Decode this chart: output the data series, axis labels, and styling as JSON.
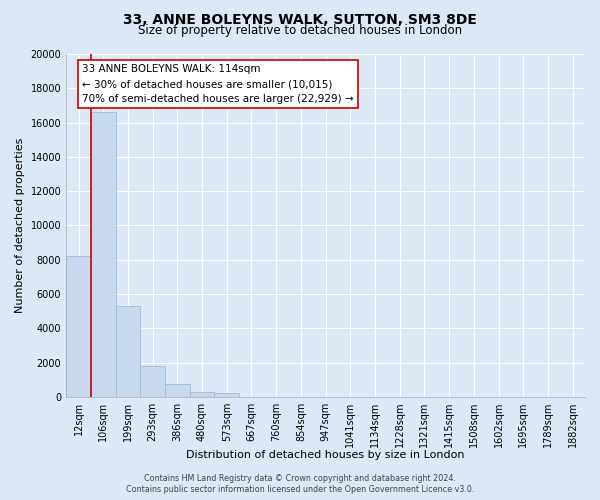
{
  "title": "33, ANNE BOLEYNS WALK, SUTTON, SM3 8DE",
  "subtitle": "Size of property relative to detached houses in London",
  "xlabel": "Distribution of detached houses by size in London",
  "ylabel": "Number of detached properties",
  "bar_labels": [
    "12sqm",
    "106sqm",
    "199sqm",
    "293sqm",
    "386sqm",
    "480sqm",
    "573sqm",
    "667sqm",
    "760sqm",
    "854sqm",
    "947sqm",
    "1041sqm",
    "1134sqm",
    "1228sqm",
    "1321sqm",
    "1415sqm",
    "1508sqm",
    "1602sqm",
    "1695sqm",
    "1789sqm",
    "1882sqm"
  ],
  "bar_values": [
    8200,
    16600,
    5300,
    1800,
    750,
    280,
    200,
    0,
    0,
    0,
    0,
    0,
    0,
    0,
    0,
    0,
    0,
    0,
    0,
    0,
    0
  ],
  "bar_color": "#c8d9ee",
  "bar_edge_color": "#a0b8d8",
  "ylim": [
    0,
    20000
  ],
  "yticks": [
    0,
    2000,
    4000,
    6000,
    8000,
    10000,
    12000,
    14000,
    16000,
    18000,
    20000
  ],
  "property_line_color": "#cc0000",
  "annotation_title": "33 ANNE BOLEYNS WALK: 114sqm",
  "annotation_line1": "← 30% of detached houses are smaller (10,015)",
  "annotation_line2": "70% of semi-detached houses are larger (22,929) →",
  "annotation_box_color": "#ffffff",
  "annotation_box_edge": "#cc0000",
  "footer_line1": "Contains HM Land Registry data © Crown copyright and database right 2024.",
  "footer_line2": "Contains public sector information licensed under the Open Government Licence v3.0.",
  "bg_color": "#dce8f5",
  "plot_bg_color": "#dce8f5",
  "grid_color": "#ffffff",
  "title_fontsize": 10,
  "subtitle_fontsize": 8.5,
  "tick_fontsize": 7,
  "ylabel_fontsize": 8,
  "xlabel_fontsize": 8,
  "annotation_fontsize": 7.5,
  "footer_fontsize": 5.8
}
